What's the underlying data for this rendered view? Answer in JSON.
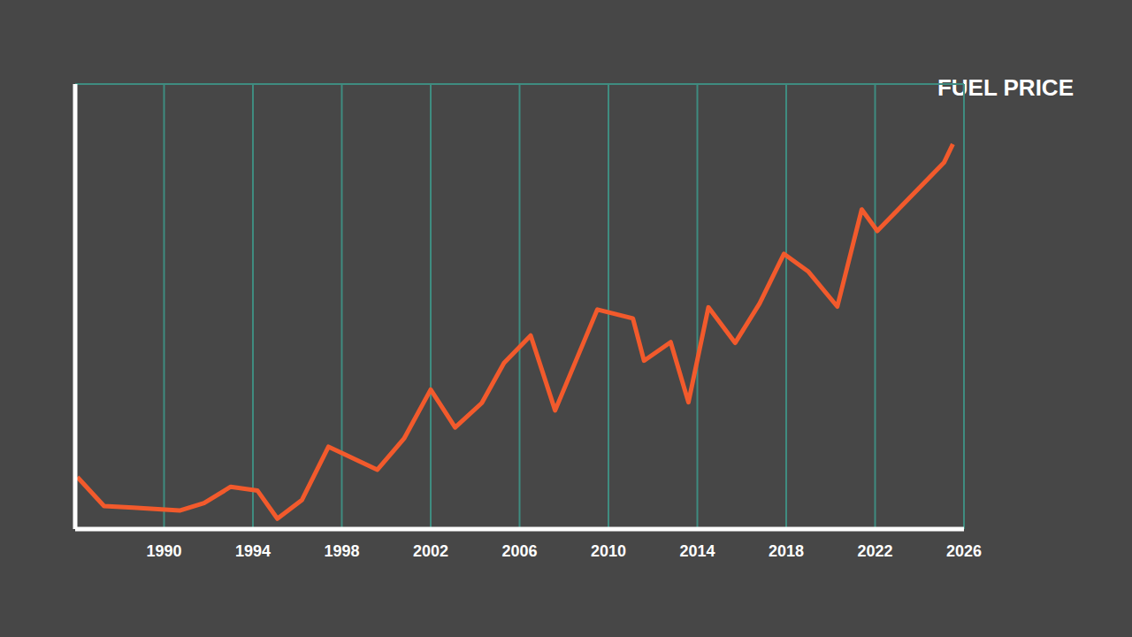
{
  "chart_data": {
    "type": "line",
    "title": "FUEL PRICE",
    "x": [
      1986.1,
      1987.3,
      1988.6,
      1990.7,
      1991.8,
      1993.0,
      1994.2,
      1995.1,
      1996.2,
      1997.4,
      1999.6,
      2000.8,
      2002.0,
      2003.1,
      2004.3,
      2005.3,
      2006.5,
      2007.6,
      2009.5,
      2011.1,
      2011.6,
      2012.8,
      2013.6,
      2014.5,
      2015.7,
      2016.8,
      2017.9,
      2019.0,
      2020.3,
      2021.4,
      2022.1,
      2025.1,
      2025.5
    ],
    "values": [
      0.7,
      0.31,
      0.29,
      0.25,
      0.35,
      0.57,
      0.52,
      0.14,
      0.39,
      1.11,
      0.8,
      1.22,
      1.88,
      1.37,
      1.7,
      2.24,
      2.61,
      1.6,
      2.96,
      2.84,
      2.27,
      2.52,
      1.71,
      2.99,
      2.51,
      3.04,
      3.71,
      3.47,
      3.0,
      4.31,
      4.02,
      4.94,
      5.19
    ],
    "color": "#f25a2c",
    "xlim": [
      1986,
      2026
    ],
    "xticks": [
      1990,
      1994,
      1998,
      2002,
      2006,
      2010,
      2014,
      2018,
      2022,
      2026
    ],
    "ylim": [
      0,
      6
    ],
    "yticks": [
      0,
      1,
      2,
      3,
      4,
      5
    ],
    "grid": true,
    "tick_labels": "x"
  }
}
